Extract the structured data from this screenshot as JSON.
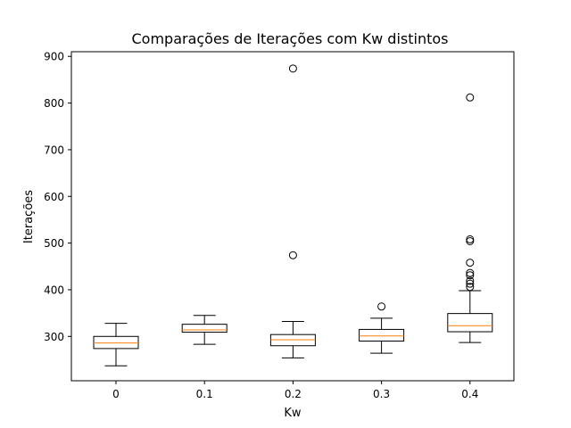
{
  "chart_data": {
    "type": "boxplot",
    "title": "Comparações de Iterações com Kw distintos",
    "xlabel": "Kw",
    "ylabel": "Iterações",
    "categories": [
      "0",
      "0.1",
      "0.2",
      "0.3",
      "0.4"
    ],
    "ylim": [
      205,
      910
    ],
    "yticks": [
      "300",
      "400",
      "500",
      "600",
      "700",
      "800",
      "900"
    ],
    "grid": false,
    "colors": {
      "box": "#000000",
      "median": "#ff7f0e"
    },
    "boxes": [
      {
        "label": "0",
        "whisker_low": 237,
        "q1": 274,
        "median": 286,
        "q3": 300,
        "whisker_high": 328,
        "outliers": []
      },
      {
        "label": "0.1",
        "whisker_low": 283,
        "q1": 309,
        "median": 314,
        "q3": 326,
        "whisker_high": 345,
        "outliers": []
      },
      {
        "label": "0.2",
        "whisker_low": 254,
        "q1": 280,
        "median": 293,
        "q3": 304,
        "whisker_high": 332,
        "outliers": [
          474,
          874
        ]
      },
      {
        "label": "0.3",
        "whisker_low": 264,
        "q1": 290,
        "median": 301,
        "q3": 315,
        "whisker_high": 339,
        "outliers": [
          364
        ]
      },
      {
        "label": "0.4",
        "whisker_low": 287,
        "q1": 310,
        "median": 323,
        "q3": 349,
        "whisker_high": 398,
        "outliers": [
          406,
          413,
          419,
          431,
          436,
          458,
          504,
          508,
          812
        ]
      }
    ]
  }
}
